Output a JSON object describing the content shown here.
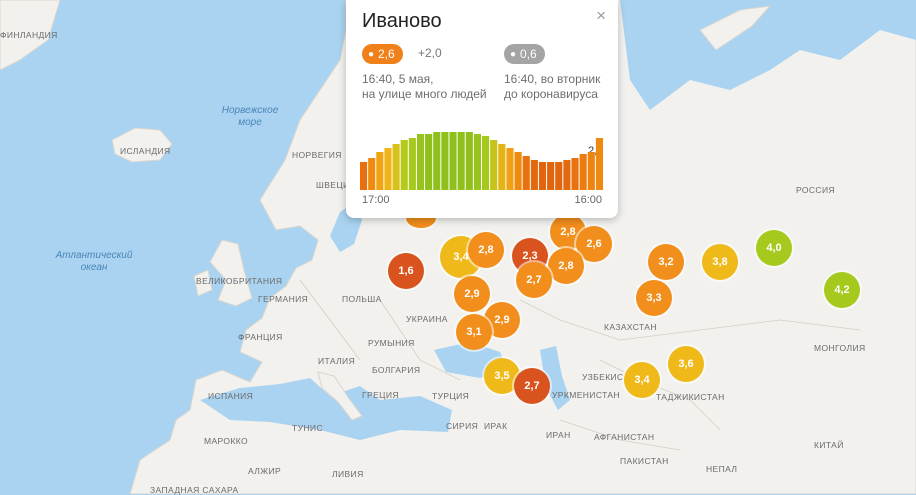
{
  "colors": {
    "water": "#a9d3f0",
    "land": "#f2f1ee",
    "level_red": "#d9531e",
    "level_orange": "#f28e1c",
    "level_yellow": "#f0b91a",
    "level_green": "#a6c91e",
    "pill_gray": "#a4a4a4"
  },
  "map_labels": {
    "finland": "ФИНЛАНДИЯ",
    "norwegian_sea": "Норвежское море",
    "iceland": "ИСЛАНДИЯ",
    "norway": "НОРВЕГИЯ",
    "sweden": "ШВЕЦИЯ",
    "atlantic": "Атлантический океан",
    "great_britain": "ВЕЛИКОБРИТАНИЯ",
    "germany": "ГЕРМАНИЯ",
    "poland": "ПОЛЬША",
    "ukraine": "УКРАИНА",
    "france": "ФРАНЦИЯ",
    "romania": "РУМЫНИЯ",
    "italy": "ИТАЛИЯ",
    "bulgaria": "БОЛГАРИЯ",
    "spain": "ИСПАНИЯ",
    "greece": "ГРЕЦИЯ",
    "turkey": "ТУРЦИЯ",
    "syria": "СИРИЯ",
    "iraq": "ИРАК",
    "iran": "ИРАН",
    "turkmenistan": "УРКМЕНИСТАН",
    "uzbekistan": "УЗБЕКИС",
    "tajikistan": "ТАДЖИКИСТАН",
    "afghanistan": "АФГАНИСТАН",
    "pakistan": "ПАКИСТАН",
    "kazakhstan": "КАЗАХСТАН",
    "russia": "РОССИЯ",
    "mongolia": "МОНГОЛИЯ",
    "china": "КИТАЙ",
    "morocco": "МАРОККО",
    "tunisia": "ТУНИС",
    "algeria": "АЛЖИР",
    "libya": "ЛИВИЯ",
    "nepal": "НЕПАЛ",
    "western_sahara": "ЗАПАДНАЯ САХАРА"
  },
  "markers": [
    {
      "value": "1,6",
      "level": "red"
    },
    {
      "value": "3,4",
      "level": "yellow"
    },
    {
      "value": "2,8",
      "level": "orange"
    },
    {
      "value": "2,3",
      "level": "red"
    },
    {
      "value": "2,8",
      "level": "orange"
    },
    {
      "value": "2,6",
      "level": "orange"
    },
    {
      "value": "2,8",
      "level": "orange"
    },
    {
      "value": "2,7",
      "level": "orange"
    },
    {
      "value": "2,9",
      "level": "orange"
    },
    {
      "value": "2,9",
      "level": "orange"
    },
    {
      "value": "3,1",
      "level": "orange"
    },
    {
      "value": "3,5",
      "level": "yellow"
    },
    {
      "value": "2,7",
      "level": "red"
    },
    {
      "value": "3,2",
      "level": "orange"
    },
    {
      "value": "3,3",
      "level": "orange"
    },
    {
      "value": "3,8",
      "level": "yellow"
    },
    {
      "value": "4,0",
      "level": "green"
    },
    {
      "value": "4,2",
      "level": "green"
    },
    {
      "value": "3,4",
      "level": "yellow"
    },
    {
      "value": "3,6",
      "level": "yellow"
    }
  ],
  "popup": {
    "city": "Иваново",
    "close": "×",
    "current_value": "2,6",
    "delta": "+2,0",
    "current_desc_line1": "16:40, 5 мая,",
    "current_desc_line2": "на улице много людей",
    "baseline_value": "0,6",
    "baseline_desc_line1": "16:40, во вторник",
    "baseline_desc_line2": "до коронавируса",
    "chart_last_label": "2,6",
    "time_start": "17:00",
    "time_end": "16:00"
  },
  "chart_data": {
    "type": "bar",
    "series": [
      {
        "values": [
          1.4,
          1.6,
          1.9,
          2.1,
          2.3,
          2.5,
          2.6,
          2.8,
          2.8,
          2.9,
          2.9,
          2.9,
          2.9,
          2.9,
          2.8,
          2.7,
          2.5,
          2.3,
          2.1,
          1.9,
          1.7,
          1.5,
          1.4,
          1.4,
          1.4,
          1.5,
          1.6,
          1.8,
          1.9,
          2.6
        ]
      }
    ],
    "bar_colors": [
      "#e8700f",
      "#ef8a10",
      "#f0a412",
      "#efb416",
      "#d8c11a",
      "#b7c91c",
      "#a6c91e",
      "#98c41d",
      "#8fc01c",
      "#8fc01c",
      "#8fc01c",
      "#8fc01c",
      "#8fc01c",
      "#8fc01c",
      "#98c41d",
      "#a6c91e",
      "#c6c41b",
      "#e2b416",
      "#f0a012",
      "#ee8a10",
      "#e8720f",
      "#e26a0e",
      "#e0650e",
      "#e0650e",
      "#e0650e",
      "#e26a0e",
      "#e8720f",
      "#ec7c10",
      "#ee8410",
      "#ef8a10"
    ],
    "ylim": [
      0,
      3
    ]
  }
}
